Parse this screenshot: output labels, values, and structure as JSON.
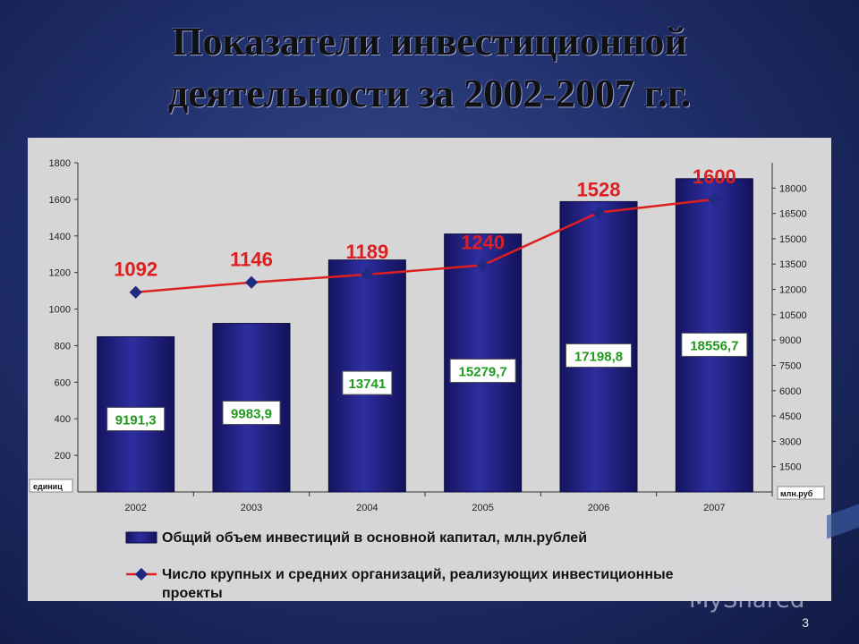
{
  "title_lines": [
    "Показатели инвестиционной",
    "деятельности за 2002-2007 г.г."
  ],
  "slide_number": "3",
  "watermark": "MyShared",
  "chart_data": {
    "type": "bar+line",
    "categories": [
      "2002",
      "2003",
      "2004",
      "2005",
      "2006",
      "2007"
    ],
    "left_axis": {
      "unit_label": "единиц",
      "ylim": [
        0,
        1800
      ],
      "ticks": [
        200,
        400,
        600,
        800,
        1000,
        1200,
        1400,
        1600,
        1800
      ]
    },
    "right_axis": {
      "unit_label": "млн.руб",
      "ylim": [
        0,
        19500
      ],
      "ticks": [
        1500,
        3000,
        4500,
        6000,
        7500,
        9000,
        10500,
        12000,
        13500,
        15000,
        16500,
        18000
      ]
    },
    "series": [
      {
        "name": "Общий объем инвестиций в основной капитал, млн.рублей",
        "type": "bar",
        "axis": "right",
        "values": [
          9191.3,
          9983.9,
          13741,
          15279.7,
          17198.8,
          18556.7
        ],
        "labels": [
          "9191,3",
          "9983,9",
          "13741",
          "15279,7",
          "17198,8",
          "18556,7"
        ],
        "color": "#1f1f80",
        "label_color": "#1f9a1f"
      },
      {
        "name": "Число крупных и средних организаций, реализующих инвестиционные проекты",
        "type": "line",
        "axis": "left",
        "values": [
          1092,
          1146,
          1189,
          1240,
          1528,
          1600
        ],
        "labels": [
          "1092",
          "1146",
          "1189",
          "1240",
          "1528",
          "1600"
        ],
        "color": "#dd1f1f",
        "marker_color": "#1f2a80"
      }
    ],
    "legend": [
      {
        "text": "Общий объем инвестиций в основной капитал, млн.рублей"
      },
      {
        "text": "Число крупных и средних организаций, реализующих инвестиционные",
        "text2": "проекты"
      }
    ],
    "grid": false,
    "legend_placement": "bottom"
  }
}
